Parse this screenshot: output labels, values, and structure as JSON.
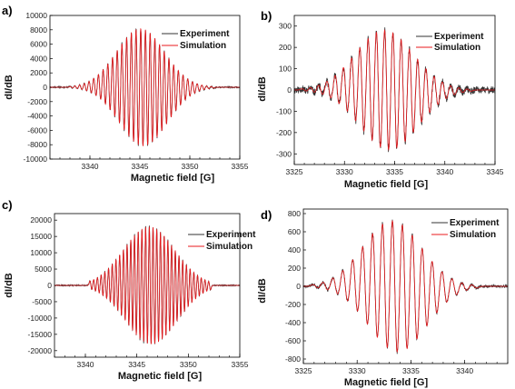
{
  "colors": {
    "experiment": "#333333",
    "simulation": "#e8191c"
  },
  "chart_data": [
    {
      "type": "line",
      "panel_label": "a)",
      "xlabel": "Magnetic field [G]",
      "ylabel": "dI/dB",
      "xlim": [
        3336,
        3355
      ],
      "ylim": [
        -10000,
        10000
      ],
      "xticks": [
        3340,
        3345,
        3350,
        3355
      ],
      "xtick_labels": [
        "3340",
        "3345",
        "3350",
        "3355"
      ],
      "yticks": [
        -10000,
        -8000,
        -6000,
        -4000,
        -2000,
        0,
        2000,
        4000,
        6000,
        8000,
        10000
      ],
      "ytick_labels": [
        "-10000",
        "-8000",
        "-6000",
        "-4000",
        "-2000",
        "0",
        "2000",
        "4000",
        "6000",
        "8000",
        "10000"
      ],
      "legend_position": "top-right",
      "series": [
        {
          "name": "Experiment"
        },
        {
          "name": "Simulation"
        }
      ],
      "center": 3345.2,
      "spacing": 0.47,
      "peak": 8200,
      "width": 2.4,
      "noise": 0.01,
      "seed": 3
    },
    {
      "type": "line",
      "panel_label": "b)",
      "xlabel": "Magnetic field [G]",
      "ylabel": "dI/dB",
      "xlim": [
        3325,
        3345
      ],
      "ylim": [
        -350,
        350
      ],
      "xticks": [
        3325,
        3330,
        3335,
        3340,
        3345
      ],
      "xtick_labels": [
        "3325",
        "3330",
        "3335",
        "3340",
        "3345"
      ],
      "yticks": [
        -300,
        -200,
        -100,
        0,
        100,
        200,
        300
      ],
      "ytick_labels": [
        "-300",
        "-200",
        "-100",
        "0",
        "100",
        "200",
        "300"
      ],
      "legend_position": "top-right",
      "series": [
        {
          "name": "Experiment"
        },
        {
          "name": "Simulation"
        }
      ],
      "center": 3334.2,
      "spacing": 0.82,
      "peak": 280,
      "width": 2.9,
      "noise": 0.06,
      "seed": 11
    },
    {
      "type": "line",
      "panel_label": "c)",
      "xlabel": "Magnetic field [G]",
      "ylabel": "dI/dB",
      "xlim": [
        3337,
        3355
      ],
      "ylim": [
        -22000,
        22000
      ],
      "xticks": [
        3340,
        3345,
        3350,
        3355
      ],
      "xtick_labels": [
        "3340",
        "3345",
        "3350",
        "3355"
      ],
      "yticks": [
        -20000,
        -15000,
        -10000,
        -5000,
        0,
        5000,
        10000,
        15000,
        20000
      ],
      "ytick_labels": [
        "-20000",
        "-15000",
        "-10000",
        "-5000",
        "0",
        "5000",
        "10000",
        "15000",
        "20000"
      ],
      "legend_position": "top-right",
      "series": [
        {
          "name": "Experiment"
        },
        {
          "name": "Simulation"
        }
      ],
      "center": 3346.3,
      "spacing": 0.36,
      "peak": 18000,
      "width": 2.5,
      "noise": 0.008,
      "seed": 5
    },
    {
      "type": "line",
      "panel_label": "d)",
      "xlabel": "Magnetic field [G]",
      "ylabel": "dI/dB",
      "xlim": [
        3325,
        3344
      ],
      "ylim": [
        -850,
        850
      ],
      "xticks": [
        3325,
        3330,
        3335,
        3340
      ],
      "xtick_labels": [
        "3325",
        "3330",
        "3335",
        "3340"
      ],
      "yticks": [
        -800,
        -600,
        -400,
        -200,
        0,
        200,
        400,
        600,
        800
      ],
      "ytick_labels": [
        "-800",
        "-600",
        "-400",
        "-200",
        "0",
        "200",
        "400",
        "600",
        "800"
      ],
      "legend_position": "top-right",
      "series": [
        {
          "name": "Experiment"
        },
        {
          "name": "Simulation"
        }
      ],
      "center": 3333.5,
      "spacing": 0.92,
      "peak": 720,
      "width": 2.7,
      "noise": 0.02,
      "seed": 17
    }
  ]
}
